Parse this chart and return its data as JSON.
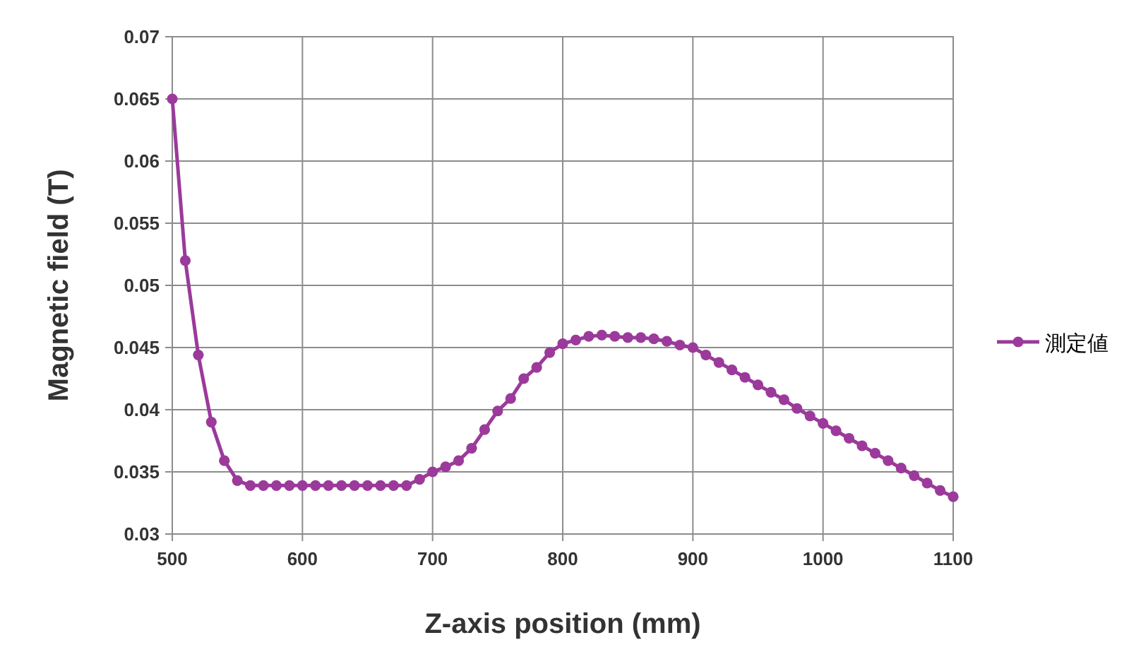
{
  "chart_data": {
    "type": "line",
    "xlabel": "Z-axis position (mm)",
    "ylabel": "Magnetic field (T)",
    "x": [
      500,
      510,
      520,
      530,
      540,
      550,
      560,
      570,
      580,
      590,
      600,
      610,
      620,
      630,
      640,
      650,
      660,
      670,
      680,
      690,
      700,
      710,
      720,
      730,
      740,
      750,
      760,
      770,
      780,
      790,
      800,
      810,
      820,
      830,
      840,
      850,
      860,
      870,
      880,
      890,
      900,
      910,
      920,
      930,
      940,
      950,
      960,
      970,
      980,
      990,
      1000,
      1010,
      1020,
      1030,
      1040,
      1050,
      1060,
      1070,
      1080,
      1090,
      1100
    ],
    "series": [
      {
        "name": "測定値",
        "color": "#9b3a9b",
        "values": [
          0.065,
          0.052,
          0.0444,
          0.039,
          0.0359,
          0.0343,
          0.0339,
          0.0339,
          0.0339,
          0.0339,
          0.0339,
          0.0339,
          0.0339,
          0.0339,
          0.0339,
          0.0339,
          0.0339,
          0.0339,
          0.0339,
          0.0344,
          0.035,
          0.0354,
          0.0359,
          0.0369,
          0.0384,
          0.0399,
          0.0409,
          0.0425,
          0.0434,
          0.0446,
          0.0453,
          0.0456,
          0.0459,
          0.046,
          0.0459,
          0.0458,
          0.0458,
          0.0457,
          0.0455,
          0.0452,
          0.045,
          0.0444,
          0.0438,
          0.0432,
          0.0426,
          0.042,
          0.0414,
          0.0408,
          0.0401,
          0.0395,
          0.0389,
          0.0383,
          0.0377,
          0.0371,
          0.0365,
          0.0359,
          0.0353,
          0.0347,
          0.0341,
          0.0335,
          0.033
        ]
      }
    ],
    "xlim": [
      500,
      1100
    ],
    "xticks": [
      500,
      600,
      700,
      800,
      900,
      1000,
      1100
    ],
    "ylim": [
      0.03,
      0.07
    ],
    "yticks": [
      0.03,
      0.035,
      0.04,
      0.045,
      0.05,
      0.055,
      0.06,
      0.065,
      0.07
    ],
    "grid": true,
    "legend": "right",
    "marker": "circle",
    "line_style": "solid"
  }
}
